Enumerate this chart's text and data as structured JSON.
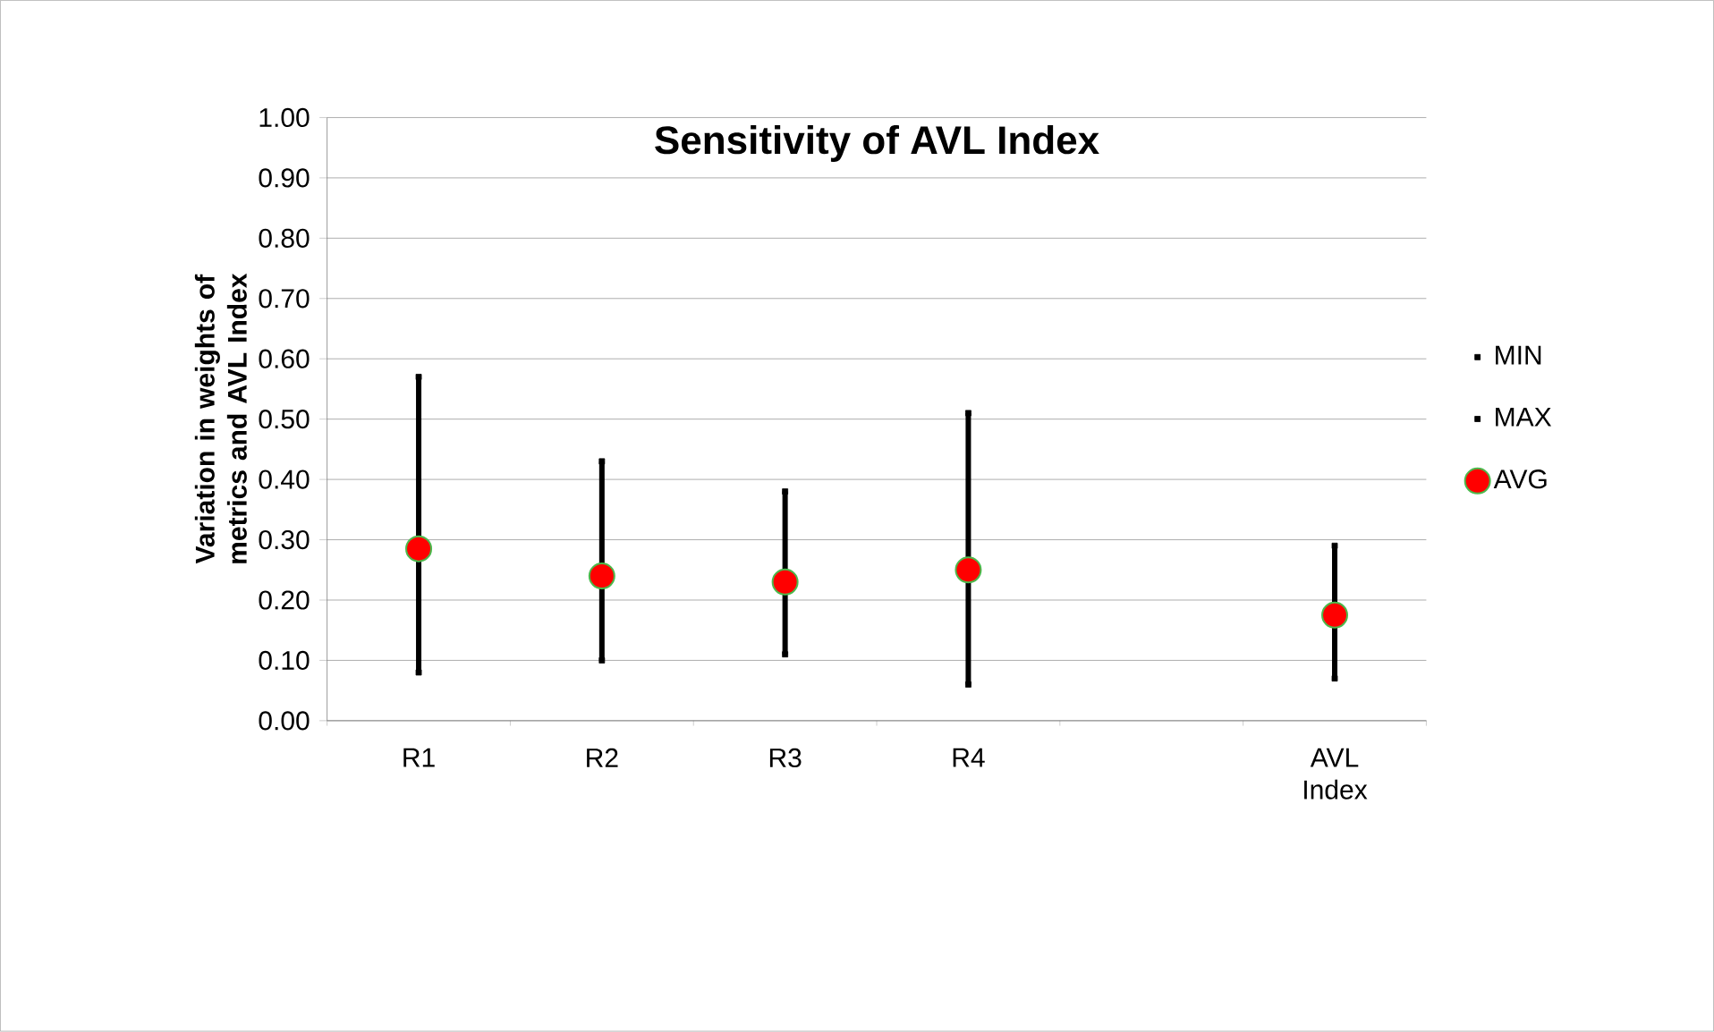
{
  "chart_data": {
    "type": "scatter",
    "title": "Sensitivity of AVL Index",
    "ylabel": "Variation in weights of metrics  and AVL Index",
    "categories": [
      "R1",
      "R2",
      "R3",
      "R4",
      null,
      "AVL Index"
    ],
    "series": [
      {
        "name": "MIN",
        "color": "#000000",
        "marker": "square",
        "values": [
          0.08,
          0.1,
          0.11,
          0.06,
          null,
          0.07
        ]
      },
      {
        "name": "MAX",
        "color": "#000000",
        "marker": "square",
        "values": [
          0.57,
          0.43,
          0.38,
          0.51,
          null,
          0.29
        ]
      },
      {
        "name": "AVG",
        "color": "#ff0000",
        "marker": "circle",
        "values": [
          0.285,
          0.24,
          0.23,
          0.25,
          null,
          0.175
        ]
      }
    ],
    "ylim": [
      0,
      1
    ],
    "yticks": [
      {
        "value": 0,
        "label": "0.00"
      },
      {
        "value": 0.1,
        "label": "0.10"
      },
      {
        "value": 0.2,
        "label": "0.20"
      },
      {
        "value": 0.3,
        "label": "0.30"
      },
      {
        "value": 0.4,
        "label": "0.40"
      },
      {
        "value": 0.5,
        "label": "0.50"
      },
      {
        "value": 0.6,
        "label": "0.60"
      },
      {
        "value": 0.7,
        "label": "0.70"
      },
      {
        "value": 0.8,
        "label": "0.80"
      },
      {
        "value": 0.9,
        "label": "0.90"
      },
      {
        "value": 1,
        "label": "1.00"
      }
    ],
    "grid": "y",
    "legend": "right"
  }
}
